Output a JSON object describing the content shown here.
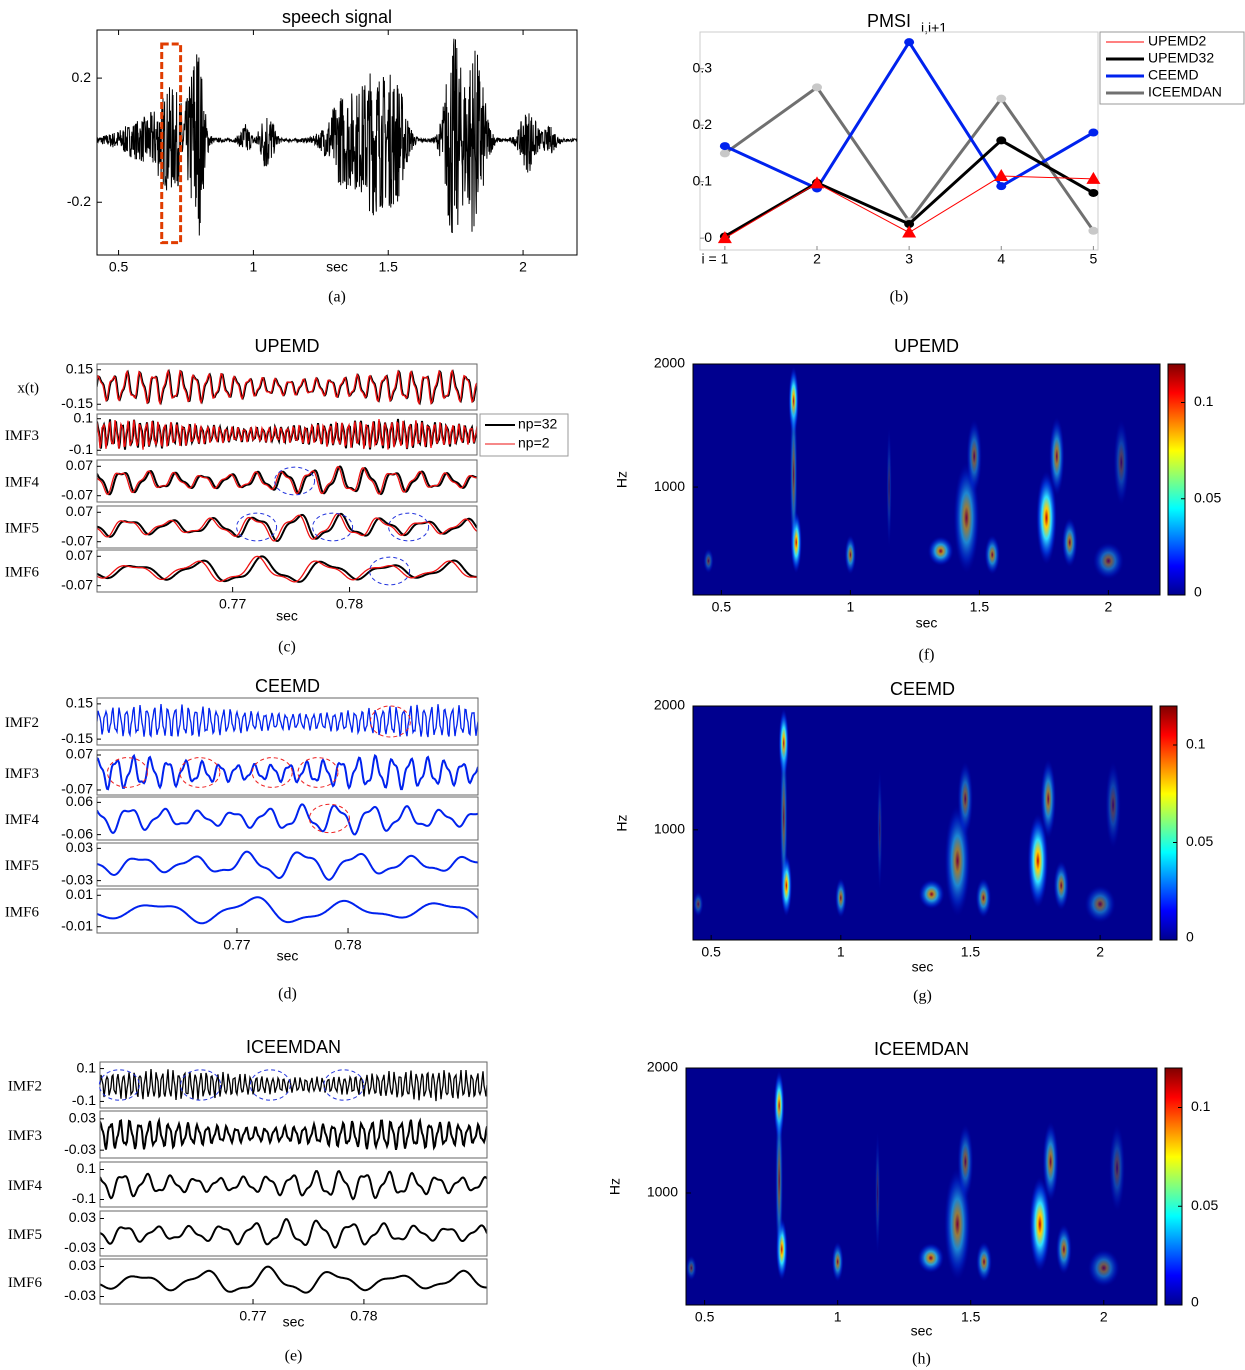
{
  "chart_data": [
    {
      "type": "waveform",
      "title": "speech signal",
      "xlabel": "sec",
      "caption": "(a)",
      "xlim": [
        0.42,
        2.2
      ],
      "ylim": [
        -0.37,
        0.355
      ],
      "xticks": [
        0.5,
        1,
        1.5,
        2
      ],
      "yticks": [
        0.2,
        -0.2
      ],
      "color": "#000000",
      "highlight_color": "#e03c00"
    },
    {
      "type": "line",
      "title": "PMSI",
      "title_subscript": "i,i+1",
      "caption": "(b)",
      "x": [
        1,
        2,
        3,
        4,
        5
      ],
      "xlim": [
        0.73,
        5.05
      ],
      "ylim": [
        -0.021,
        0.365
      ],
      "xticks": [
        {
          "value": 1,
          "label": "i = 1"
        },
        2,
        3,
        4,
        5
      ],
      "yticks": [
        0,
        0.1,
        0.2,
        0.3
      ],
      "legend": "outside-right",
      "series": [
        {
          "name": "UPEMD2",
          "color": "#ff0000",
          "marker": "triangle",
          "values": [
            0,
            0.097,
            0.01,
            0.11,
            0.105
          ]
        },
        {
          "name": "UPEMD32",
          "color": "#000000",
          "marker": "circle",
          "values": [
            0.003,
            0.098,
            0.025,
            0.173,
            0.08
          ]
        },
        {
          "name": "CEEMD",
          "color": "#0022ee",
          "marker": "circle",
          "values": [
            0.163,
            0.088,
            0.347,
            0.092,
            0.187
          ]
        },
        {
          "name": "ICEEMDAN",
          "color": "#707070",
          "marker": "circle",
          "values": [
            0.15,
            0.267,
            0.03,
            0.247,
            0.013
          ]
        }
      ]
    },
    {
      "type": "stacked",
      "title": "UPEMD",
      "xlabel": "sec",
      "caption": "(c)",
      "xlim": [
        0.7584,
        0.7909
      ],
      "xticks": [
        0.77,
        0.78
      ],
      "series": [
        {
          "name": "np=32",
          "color": "#000000"
        },
        {
          "name": "np=2",
          "color": "#ee1111"
        }
      ],
      "rows": [
        {
          "label": "x(t)",
          "yticks": [
            0.15,
            -0.15
          ],
          "ylim": [
            -0.2,
            0.2
          ]
        },
        {
          "label": "IMF3",
          "yticks": [
            0.1,
            -0.1
          ],
          "ylim": [
            -0.13,
            0.13
          ]
        },
        {
          "label": "IMF4",
          "yticks": [
            0.07,
            -0.07
          ],
          "ylim": [
            -0.1,
            0.1
          ]
        },
        {
          "label": "IMF5",
          "yticks": [
            0.07,
            -0.07
          ],
          "ylim": [
            -0.1,
            0.1
          ]
        },
        {
          "label": "IMF6",
          "yticks": [
            0.07,
            -0.07
          ],
          "ylim": [
            -0.1,
            0.1
          ]
        }
      ]
    },
    {
      "type": "stacked",
      "title": "CEEMD",
      "xlabel": "sec",
      "caption": "(d)",
      "xlim": [
        0.7574,
        0.7917
      ],
      "xticks": [
        0.77,
        0.78
      ],
      "series": [
        {
          "color": "#0022ee"
        }
      ],
      "rows": [
        {
          "label": "IMF2",
          "yticks": [
            0.15,
            -0.15
          ],
          "ylim": [
            -0.2,
            0.2
          ]
        },
        {
          "label": "IMF3",
          "yticks": [
            0.07,
            -0.07
          ],
          "ylim": [
            -0.09,
            0.09
          ]
        },
        {
          "label": "IMF4",
          "yticks": [
            0.06,
            -0.06
          ],
          "ylim": [
            -0.08,
            0.08
          ]
        },
        {
          "label": "IMF5",
          "yticks": [
            0.03,
            -0.03
          ],
          "ylim": [
            -0.04,
            0.04
          ]
        },
        {
          "label": "IMF6",
          "yticks": [
            0.01,
            -0.01
          ],
          "ylim": [
            -0.014,
            0.014
          ]
        }
      ]
    },
    {
      "type": "stacked",
      "title": "ICEEMDAN",
      "xlabel": "sec",
      "caption": "(e)",
      "xlim": [
        0.7562,
        0.7911
      ],
      "xticks": [
        0.77,
        0.78
      ],
      "series": [
        {
          "color": "#000000"
        }
      ],
      "rows": [
        {
          "label": "IMF2",
          "yticks": [
            0.1,
            -0.1
          ],
          "ylim": [
            -0.14,
            0.14
          ]
        },
        {
          "label": "IMF3",
          "yticks": [
            0.03,
            -0.03
          ],
          "ylim": [
            -0.045,
            0.045
          ]
        },
        {
          "label": "IMF4",
          "yticks": [
            0.1,
            -0.1
          ],
          "ylim": [
            -0.15,
            0.15
          ]
        },
        {
          "label": "IMF5",
          "yticks": [
            0.03,
            -0.03
          ],
          "ylim": [
            -0.045,
            0.045
          ]
        },
        {
          "label": "IMF6",
          "yticks": [
            0.03,
            -0.03
          ],
          "ylim": [
            -0.045,
            0.045
          ]
        }
      ]
    },
    {
      "type": "heatmap",
      "title": "UPEMD",
      "ylabel": "Hz",
      "xlabel": "sec",
      "caption": "(f)",
      "xlim": [
        0.39,
        2.2
      ],
      "ylim": [
        123,
        2000
      ],
      "xticks": [
        0.5,
        1,
        1.5,
        2
      ],
      "yticks": [
        1000,
        2000
      ],
      "clim": [
        0,
        0.12
      ],
      "cticks": [
        0,
        0.05,
        0.1
      ],
      "colormap": "jet"
    },
    {
      "type": "heatmap",
      "title": "CEEMD",
      "ylabel": "Hz",
      "xlabel": "sec",
      "caption": "(g)",
      "xlim": [
        0.43,
        2.2
      ],
      "ylim": [
        110,
        2000
      ],
      "xticks": [
        0.5,
        1,
        1.5,
        2
      ],
      "yticks": [
        1000,
        2000
      ],
      "clim": [
        0,
        0.12
      ],
      "cticks": [
        0,
        0.05,
        0.1
      ],
      "colormap": "jet"
    },
    {
      "type": "heatmap",
      "title": "ICEEMDAN",
      "ylabel": "Hz",
      "xlabel": "sec",
      "caption": "(h)",
      "xlim": [
        0.43,
        2.2
      ],
      "ylim": [
        104,
        2000
      ],
      "xticks": [
        0.5,
        1,
        1.5,
        2
      ],
      "yticks": [
        1000,
        2000
      ],
      "clim": [
        0,
        0.12
      ],
      "cticks": [
        0,
        0.05,
        0.1
      ],
      "colormap": "jet"
    }
  ]
}
